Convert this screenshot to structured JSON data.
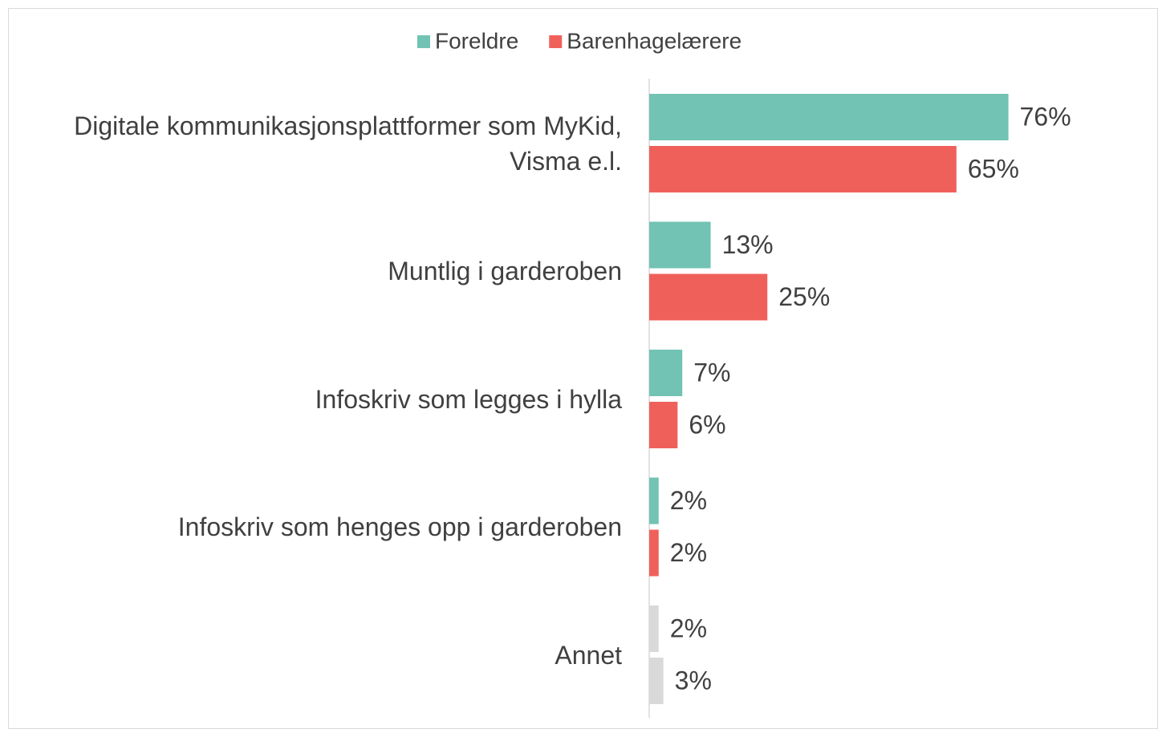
{
  "chart_data": {
    "type": "barh",
    "categories": [
      "Digitale kommunikasjonsplattformer som MyKid, Visma e.l.",
      "Muntlig i garderoben",
      "Infoskriv som legges i hylla",
      "Infoskriv som henges opp i garderoben",
      "Annet"
    ],
    "series": [
      {
        "name": "Foreldre",
        "color": "#72c3b4",
        "colors": [
          "#72c3b4",
          "#72c3b4",
          "#72c3b4",
          "#72c3b4",
          "#d9d9d9"
        ],
        "values": [
          76,
          13,
          7,
          2,
          2
        ],
        "value_labels": [
          "76%",
          "13%",
          "7%",
          "2%",
          "2%"
        ]
      },
      {
        "name": "Barenhagelærere",
        "color": "#f0605a",
        "colors": [
          "#f0605a",
          "#f0605a",
          "#f0605a",
          "#f0605a",
          "#d9d9d9"
        ],
        "values": [
          65,
          25,
          6,
          2,
          3
        ],
        "value_labels": [
          "65%",
          "25%",
          "6%",
          "2%",
          "3%"
        ]
      }
    ],
    "xlim": [
      0,
      100
    ],
    "legend": "top"
  }
}
